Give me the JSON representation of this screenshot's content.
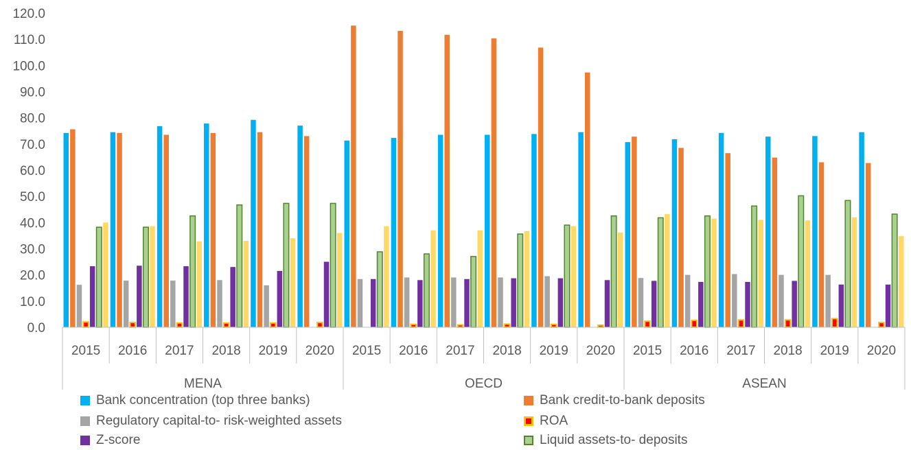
{
  "chart_data": {
    "type": "bar",
    "title": "",
    "xlabel": "",
    "ylabel": "",
    "ylim": [
      0,
      120
    ],
    "ytick_step": 10,
    "ytick_labels": [
      "0.0",
      "10.0",
      "20.0",
      "30.0",
      "40.0",
      "50.0",
      "60.0",
      "70.0",
      "80.0",
      "90.0",
      "100.0",
      "110.0",
      "120.0"
    ],
    "grid": false,
    "groups": [
      {
        "name": "MENA",
        "years": [
          "2015",
          "2016",
          "2017",
          "2018",
          "2019",
          "2020"
        ]
      },
      {
        "name": "OECD",
        "years": [
          "2015",
          "2016",
          "2017",
          "2018",
          "2019",
          "2020"
        ]
      },
      {
        "name": "ASEAN",
        "years": [
          "2015",
          "2016",
          "2017",
          "2018",
          "2019",
          "2020"
        ]
      }
    ],
    "legend_position": "bottom",
    "series": [
      {
        "name": "Bank concentration (top three banks)",
        "color": "#00B0F0",
        "style": "solid",
        "values": [
          74.2,
          74.5,
          76.8,
          77.8,
          79.2,
          77.0,
          71.3,
          72.3,
          73.5,
          73.5,
          73.8,
          74.5,
          70.7,
          71.8,
          74.2,
          72.8,
          73.0,
          74.5
        ]
      },
      {
        "name": "Bank credit-to-bank deposits",
        "color": "#ED7D31",
        "style": "solid",
        "values": [
          75.6,
          74.2,
          73.5,
          74.2,
          74.5,
          73.0,
          115.2,
          113.2,
          111.7,
          110.3,
          106.8,
          97.3,
          72.8,
          68.5,
          66.5,
          64.8,
          63.0,
          62.7
        ]
      },
      {
        "name": "Regulatory capital-to- risk-weighted assets",
        "color": "#A5A5A5",
        "style": "solid",
        "values": [
          16.2,
          17.8,
          17.8,
          18.0,
          16.0,
          null,
          18.4,
          19.0,
          19.0,
          19.0,
          19.5,
          null,
          18.8,
          20.0,
          20.3,
          20.0,
          20.0,
          null
        ]
      },
      {
        "name": "ROA",
        "color": "#FF0000",
        "style": "roa",
        "values": [
          2.0,
          1.8,
          1.6,
          1.6,
          1.6,
          1.8,
          null,
          1.1,
          0.9,
          1.2,
          1.1,
          0.8,
          2.3,
          2.6,
          2.8,
          2.8,
          3.3,
          1.8
        ]
      },
      {
        "name": "Z-score",
        "color": "#7030A0",
        "style": "solid",
        "values": [
          23.3,
          23.5,
          23.3,
          23.0,
          21.5,
          25.0,
          18.4,
          18.0,
          18.4,
          18.7,
          18.7,
          18.0,
          17.7,
          17.3,
          17.3,
          17.7,
          16.3,
          16.3
        ]
      },
      {
        "name": "Liquid assets-to- deposits",
        "color": "#70AD47",
        "style": "liquid",
        "values": [
          38.2,
          38.2,
          42.5,
          46.7,
          47.3,
          47.3,
          28.8,
          28.0,
          27.0,
          35.6,
          39.0,
          42.5,
          41.8,
          42.5,
          46.3,
          50.2,
          48.4,
          43.2
        ]
      },
      {
        "name": "",
        "color": "#FFD966",
        "style": "solid",
        "values": [
          40.0,
          38.6,
          32.8,
          33.0,
          34.0,
          36.0,
          38.6,
          37.0,
          37.0,
          36.7,
          38.6,
          36.2,
          43.2,
          41.5,
          41.0,
          40.8,
          42.0,
          34.8
        ]
      }
    ]
  }
}
